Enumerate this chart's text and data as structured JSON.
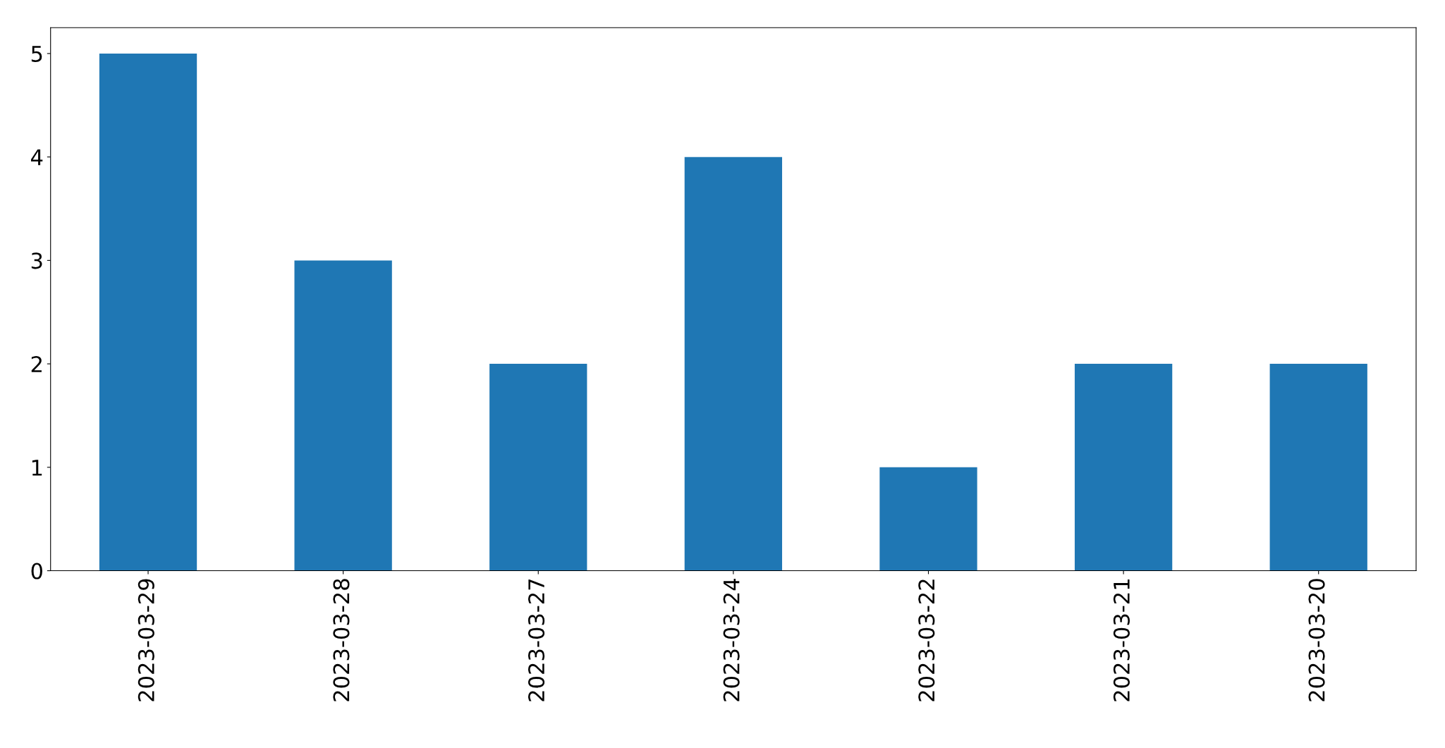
{
  "chart_data": {
    "type": "bar",
    "categories": [
      "2023-03-29",
      "2023-03-28",
      "2023-03-27",
      "2023-03-24",
      "2023-03-22",
      "2023-03-21",
      "2023-03-20"
    ],
    "values": [
      5,
      3,
      2,
      4,
      1,
      2,
      2
    ],
    "color": "#1f77b4",
    "ylim": [
      0,
      5.25
    ],
    "yticks": [
      0,
      1,
      2,
      3,
      4,
      5
    ],
    "grid": false,
    "legend": false
  }
}
